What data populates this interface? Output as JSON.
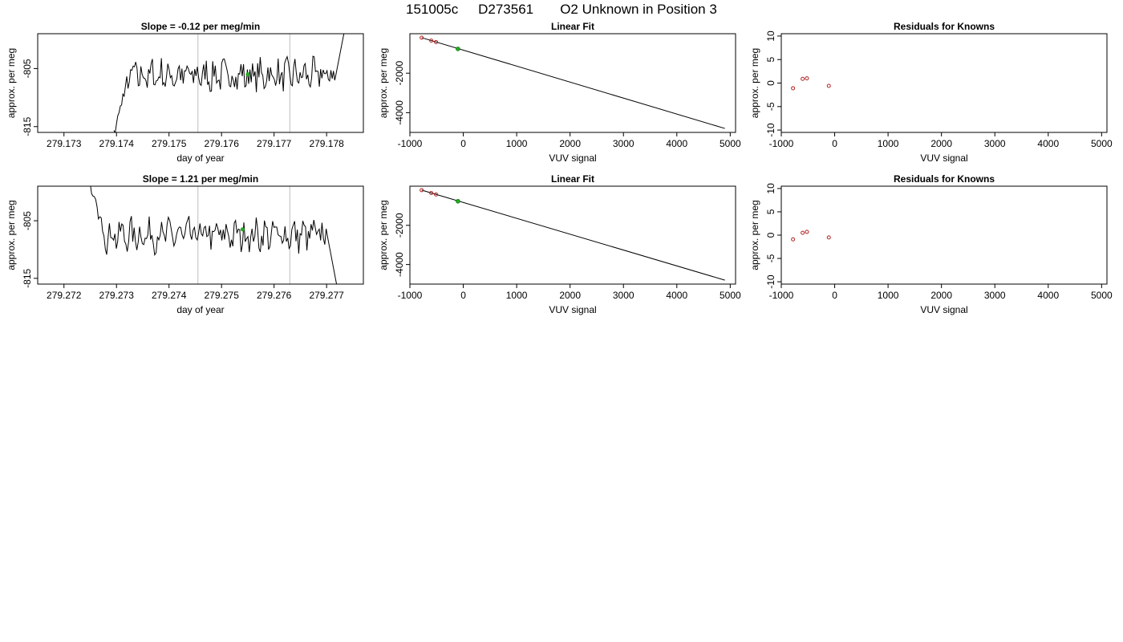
{
  "header": {
    "run_id": "151005c",
    "tank_id": "D273561",
    "description": "O2 Unknown in Position  3"
  },
  "colors": {
    "trace": "#000000",
    "known_point": "#b22222",
    "unknown_point": "#22aa22",
    "guide_line": "#c8c8c8",
    "fit_line": "#000000"
  },
  "chart_data": [
    {
      "type": "line",
      "title": "Slope =  -0.12  per meg/min",
      "xlabel": "day of year",
      "ylabel": "approx. per meg",
      "xlim": [
        279.1725,
        279.1787
      ],
      "ylim": [
        -816,
        -799
      ],
      "x_ticks": [
        279.173,
        279.174,
        279.175,
        279.176,
        279.177,
        279.178
      ],
      "x_tick_labels": [
        "279.173",
        "279.174",
        "279.175",
        "279.176",
        "279.177",
        "279.178"
      ],
      "y_ticks": [
        -815,
        -805
      ],
      "y_tick_labels": [
        "-815",
        "-805"
      ],
      "vertical_lines_x": [
        279.17555,
        279.1773
      ],
      "trace_x_range": [
        279.17395,
        279.17835
      ],
      "trace_base_y": -806.2,
      "trace_start_y": -816.5,
      "trace_end_y": -798.0,
      "unknown_point": {
        "x": 279.1765,
        "y": -806.0
      }
    },
    {
      "type": "scatter",
      "title": "Linear Fit",
      "xlabel": "VUV signal",
      "ylabel": "approx. per meg",
      "xlim": [
        -1000,
        5100
      ],
      "ylim": [
        -5000,
        0
      ],
      "x_ticks": [
        -1000,
        0,
        1000,
        2000,
        3000,
        4000,
        5000
      ],
      "x_tick_labels": [
        "-1000",
        "0",
        "1000",
        "2000",
        "3000",
        "4000",
        "5000"
      ],
      "y_ticks": [
        -4000,
        -2000
      ],
      "y_tick_labels": [
        "-4000",
        "-2000"
      ],
      "fit_line": {
        "x": [
          -780,
          4900
        ],
        "y": [
          -200,
          -4800
        ]
      },
      "knowns": {
        "x": [
          -780,
          -600,
          -510,
          -100
        ],
        "y": [
          -202,
          -350,
          -425,
          -770
        ]
      },
      "unknown": {
        "x": [
          -100
        ],
        "y": [
          -770
        ]
      }
    },
    {
      "type": "scatter",
      "title": "Residuals for Knowns",
      "xlabel": "VUV signal",
      "ylabel": "approx. per meg",
      "xlim": [
        -1000,
        5100
      ],
      "ylim": [
        -10.5,
        10.5
      ],
      "x_ticks": [
        -1000,
        0,
        1000,
        2000,
        3000,
        4000,
        5000
      ],
      "x_tick_labels": [
        "-1000",
        "0",
        "1000",
        "2000",
        "3000",
        "4000",
        "5000"
      ],
      "y_ticks": [
        -10,
        -5,
        0,
        5,
        10
      ],
      "y_tick_labels": [
        "-10",
        "-5",
        "0",
        "5",
        "10"
      ],
      "points": {
        "x": [
          -780,
          -600,
          -520,
          -110
        ],
        "y": [
          -1.1,
          0.9,
          1.0,
          -0.6
        ]
      }
    },
    {
      "type": "line",
      "title": "Slope =  1.21  per meg/min",
      "xlabel": "day of year",
      "ylabel": "approx. per meg",
      "xlim": [
        279.2715,
        279.2777
      ],
      "ylim": [
        -816,
        -799
      ],
      "x_ticks": [
        279.272,
        279.273,
        279.274,
        279.275,
        279.276,
        279.277
      ],
      "x_tick_labels": [
        "279.272",
        "279.273",
        "279.274",
        "279.275",
        "279.276",
        "279.277"
      ],
      "y_ticks": [
        -815,
        -805
      ],
      "y_tick_labels": [
        "-815",
        "-805"
      ],
      "vertical_lines_x": [
        279.27455,
        279.2763
      ],
      "trace_x_range": [
        279.2725,
        279.2772
      ],
      "trace_base_y": -807.5,
      "trace_start_y": -799.0,
      "trace_end_y": -816.5,
      "unknown_point": {
        "x": 279.2754,
        "y": -806.5
      }
    },
    {
      "type": "scatter",
      "title": "Linear Fit",
      "xlabel": "VUV signal",
      "ylabel": "approx. per meg",
      "xlim": [
        -1000,
        5100
      ],
      "ylim": [
        -5000,
        0
      ],
      "x_ticks": [
        -1000,
        0,
        1000,
        2000,
        3000,
        4000,
        5000
      ],
      "x_tick_labels": [
        "-1000",
        "0",
        "1000",
        "2000",
        "3000",
        "4000",
        "5000"
      ],
      "y_ticks": [
        -4000,
        -2000
      ],
      "y_tick_labels": [
        "-4000",
        "-2000"
      ],
      "fit_line": {
        "x": [
          -780,
          4900
        ],
        "y": [
          -200,
          -4800
        ]
      },
      "knowns": {
        "x": [
          -780,
          -600,
          -510,
          -100
        ],
        "y": [
          -202,
          -350,
          -425,
          -770
        ]
      },
      "unknown": {
        "x": [
          -100
        ],
        "y": [
          -770
        ]
      }
    },
    {
      "type": "scatter",
      "title": "Residuals for Knowns",
      "xlabel": "VUV signal",
      "ylabel": "approx. per meg",
      "xlim": [
        -1000,
        5100
      ],
      "ylim": [
        -10.5,
        10.5
      ],
      "x_ticks": [
        -1000,
        0,
        1000,
        2000,
        3000,
        4000,
        5000
      ],
      "x_tick_labels": [
        "-1000",
        "0",
        "1000",
        "2000",
        "3000",
        "4000",
        "5000"
      ],
      "y_ticks": [
        -10,
        -5,
        0,
        5,
        10
      ],
      "y_tick_labels": [
        "-10",
        "-5",
        "0",
        "5",
        "10"
      ],
      "points": {
        "x": [
          -780,
          -600,
          -520,
          -110
        ],
        "y": [
          -0.9,
          0.5,
          0.7,
          -0.5
        ]
      }
    }
  ]
}
